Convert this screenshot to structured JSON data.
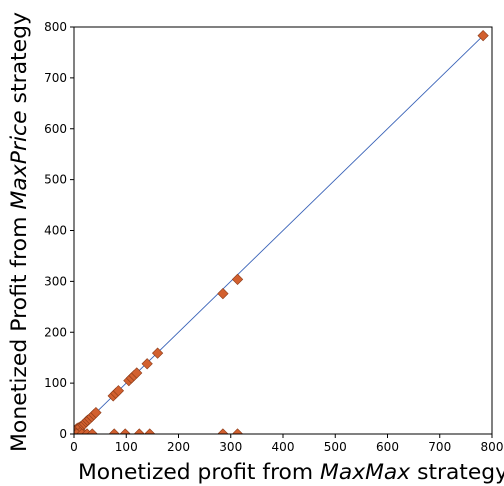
{
  "chart_data": {
    "type": "scatter",
    "title": "",
    "xlabel_parts": [
      {
        "text": "Monetized profit from ",
        "style": "normal"
      },
      {
        "text": "MaxMax",
        "style": "italic"
      },
      {
        "text": " strategy",
        "style": "normal"
      }
    ],
    "ylabel_parts": [
      {
        "text": "Monetized Profit from ",
        "style": "normal"
      },
      {
        "text": "MaxPrice",
        "style": "italic"
      },
      {
        "text": " strategy",
        "style": "normal"
      }
    ],
    "xlim": [
      0,
      800
    ],
    "ylim": [
      0,
      800
    ],
    "xticks": [
      0,
      100,
      200,
      300,
      400,
      500,
      600,
      700,
      800
    ],
    "yticks": [
      0,
      100,
      200,
      300,
      400,
      500,
      600,
      700,
      800
    ],
    "grid": false,
    "reference_line": {
      "type": "identity",
      "from": [
        0,
        0
      ],
      "to": [
        783,
        783
      ],
      "color": "#3a63b8"
    },
    "marker": {
      "shape": "diamond",
      "color": "#d2602f",
      "edge_color": "#8a3a18"
    },
    "points": [
      {
        "x": 0,
        "y": 0
      },
      {
        "x": 1,
        "y": 3
      },
      {
        "x": 3,
        "y": 6
      },
      {
        "x": 5,
        "y": 10
      },
      {
        "x": 8,
        "y": 12
      },
      {
        "x": 10,
        "y": 8
      },
      {
        "x": 12,
        "y": 14
      },
      {
        "x": 14,
        "y": 5
      },
      {
        "x": 17,
        "y": 18
      },
      {
        "x": 20,
        "y": 20
      },
      {
        "x": 23,
        "y": 24
      },
      {
        "x": 26,
        "y": 27
      },
      {
        "x": 30,
        "y": 30
      },
      {
        "x": 34,
        "y": 34
      },
      {
        "x": 38,
        "y": 38
      },
      {
        "x": 42,
        "y": 42
      },
      {
        "x": 75,
        "y": 75
      },
      {
        "x": 80,
        "y": 80
      },
      {
        "x": 85,
        "y": 85
      },
      {
        "x": 105,
        "y": 105
      },
      {
        "x": 110,
        "y": 110
      },
      {
        "x": 115,
        "y": 115
      },
      {
        "x": 120,
        "y": 120
      },
      {
        "x": 140,
        "y": 138
      },
      {
        "x": 160,
        "y": 159
      },
      {
        "x": 285,
        "y": 276
      },
      {
        "x": 313,
        "y": 304
      },
      {
        "x": 783,
        "y": 783
      },
      {
        "x": 5,
        "y": 0
      },
      {
        "x": 15,
        "y": 0
      },
      {
        "x": 25,
        "y": 0
      },
      {
        "x": 35,
        "y": 0
      },
      {
        "x": 77,
        "y": 0
      },
      {
        "x": 98,
        "y": 0
      },
      {
        "x": 125,
        "y": 0
      },
      {
        "x": 145,
        "y": 0
      },
      {
        "x": 285,
        "y": 0
      },
      {
        "x": 313,
        "y": 0
      }
    ]
  }
}
